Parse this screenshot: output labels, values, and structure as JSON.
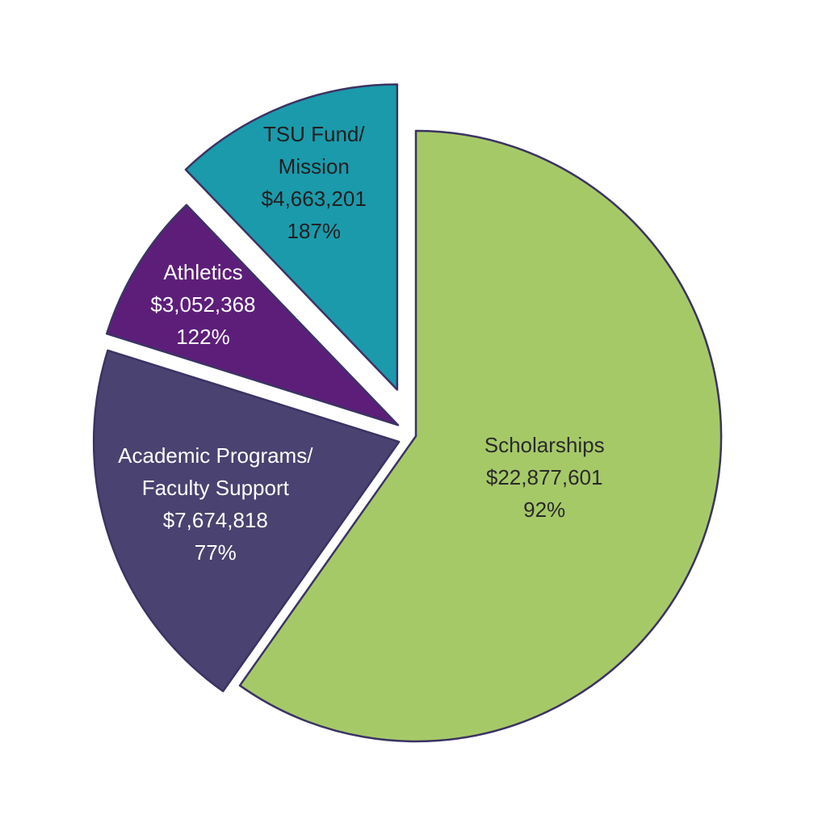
{
  "chart_data": {
    "type": "pie",
    "categories": [
      "Scholarships",
      "Academic Programs/\nFaculty Support",
      "Athletics",
      "TSU Fund/\nMission"
    ],
    "values": [
      22877601,
      7674818,
      3052368,
      4663201
    ],
    "value_labels": [
      "$22,877,601",
      "$7,674,818",
      "$3,052,368",
      "$4,663,201"
    ],
    "percents": [
      92,
      77,
      122,
      187
    ],
    "percent_labels": [
      "92%",
      "77%",
      "122%",
      "187%"
    ],
    "colors": [
      "#a6c968",
      "#4a4270",
      "#5d1e79",
      "#1b9aab"
    ]
  }
}
